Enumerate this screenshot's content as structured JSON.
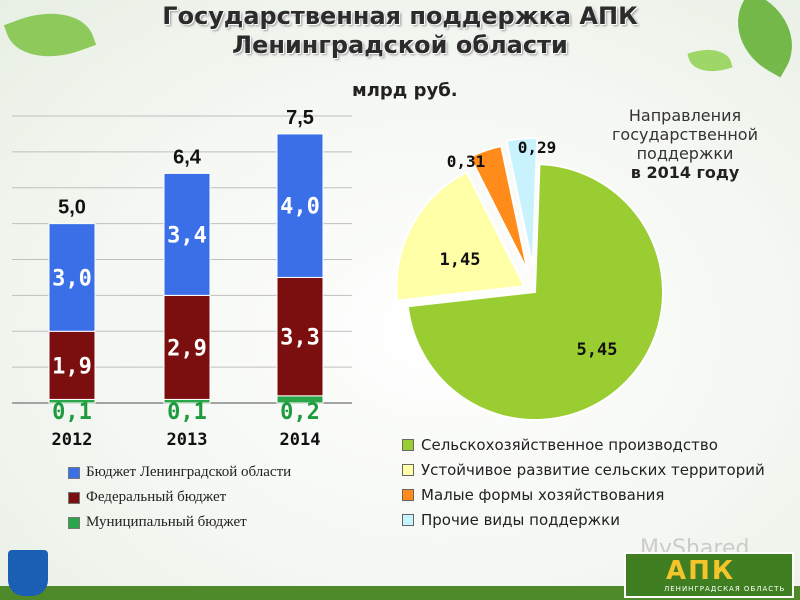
{
  "title_line1": "Государственная поддержка АПК",
  "title_line2": "Ленинградской области",
  "unit": "млрд руб.",
  "pie_caption_line1": "Направления",
  "pie_caption_line2": "государственной",
  "pie_caption_line3": "поддержки",
  "pie_caption_line4": "в 2014 году",
  "watermark": "MyShared",
  "logo_text": "АПК",
  "logo_subtext": "ЛЕНИНГРАДСКАЯ ОБЛАСТЬ",
  "chart_data": [
    {
      "type": "bar",
      "stacked": true,
      "categories": [
        "2012",
        "2013",
        "2014"
      ],
      "series": [
        {
          "name": "Муниципальный бюджет",
          "values": [
            0.1,
            0.1,
            0.2
          ],
          "labels": [
            "0,1",
            "0,1",
            "0,2"
          ],
          "color": "#2aa64a"
        },
        {
          "name": "Федеральный бюджет",
          "values": [
            1.9,
            2.9,
            3.3
          ],
          "labels": [
            "1,9",
            "2,9",
            "3,3"
          ],
          "color": "#7b0f0f"
        },
        {
          "name": "Бюджет Ленинградской области",
          "values": [
            3.0,
            3.4,
            4.0
          ],
          "labels": [
            "3,0",
            "3,4",
            "4,0"
          ],
          "color": "#3a6fe8"
        }
      ],
      "totals": [
        "5,0",
        "6,4",
        "7,5"
      ],
      "ylim": [
        0,
        8
      ],
      "grid": true,
      "legend": "bottom"
    },
    {
      "type": "pie",
      "categories": [
        "Сельскохозяйственное производство",
        "Устойчивое развитие сельских территорий",
        "Малые формы хозяйствования",
        "Прочие виды поддержки"
      ],
      "values": [
        5.45,
        1.45,
        0.31,
        0.29
      ],
      "labels": [
        "5,45",
        "1,45",
        "0,31",
        "0,29"
      ],
      "colors": [
        "#9acd32",
        "#ffffa8",
        "#ff8c1a",
        "#c9f2ff"
      ],
      "legend": "bottom"
    }
  ]
}
